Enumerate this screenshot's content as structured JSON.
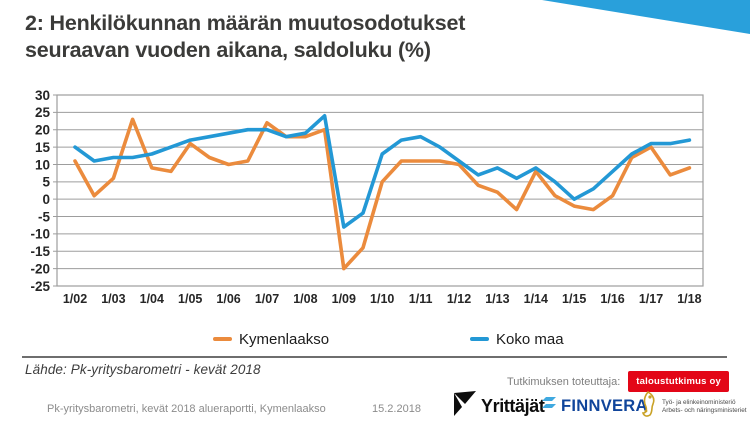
{
  "header": {
    "line1": "2: Henkilökunnan määrän muutosodotukset",
    "line2": "seuraavan vuoden aikana, saldoluku (%)"
  },
  "accent_color": "#29a0db",
  "chart_data": {
    "type": "line",
    "categories": [
      "1/02",
      "7/02",
      "1/03",
      "7/03",
      "1/04",
      "7/04",
      "1/05",
      "7/05",
      "1/06",
      "7/06",
      "1/07",
      "7/07",
      "1/08",
      "7/08",
      "1/09",
      "7/09",
      "1/10",
      "7/10",
      "1/11",
      "7/11",
      "1/12",
      "7/12",
      "1/13",
      "7/13",
      "1/14",
      "7/14",
      "1/15",
      "7/15",
      "1/16",
      "7/16",
      "1/17",
      "7/17",
      "1/18"
    ],
    "x_tick_labels": [
      "1/02",
      "1/03",
      "1/04",
      "1/05",
      "1/06",
      "1/07",
      "1/08",
      "1/09",
      "1/10",
      "1/11",
      "1/12",
      "1/13",
      "1/14",
      "1/15",
      "1/16",
      "1/17",
      "1/18"
    ],
    "x_tick_every": 2,
    "series": [
      {
        "name": "Kymenlaakso",
        "color": "#eb8b3d",
        "values": [
          11,
          1,
          6,
          23,
          9,
          8,
          16,
          12,
          10,
          11,
          22,
          18,
          18,
          20,
          -20,
          -14,
          5,
          11,
          11,
          11,
          10,
          4,
          2,
          -3,
          8,
          1,
          -2,
          -3,
          1,
          12,
          15,
          7,
          9
        ]
      },
      {
        "name": "Koko maa",
        "color": "#2398d5",
        "values": [
          15,
          11,
          12,
          12,
          13,
          15,
          17,
          18,
          19,
          20,
          20,
          18,
          19,
          24,
          -8,
          -4,
          13,
          17,
          18,
          15,
          11,
          7,
          9,
          6,
          9,
          5,
          0,
          3,
          8,
          13,
          16,
          16,
          17
        ]
      }
    ],
    "ylim": [
      -25,
      30
    ],
    "yticks": [
      30,
      25,
      20,
      15,
      10,
      5,
      0,
      -5,
      -10,
      -15,
      -20,
      -25
    ],
    "grid": "horizontal",
    "legend_position": "bottom",
    "title": "",
    "xlabel": "",
    "ylabel": ""
  },
  "source_note": "Lähde: Pk-yritysbarometri - kevät 2018",
  "researcher": {
    "label": "Tutkimuksen toteuttaja:",
    "badge": "taloustutkimus oy",
    "badge_color": "#e30617"
  },
  "footer": {
    "report": "Pk-yritysbarometri, kevät 2018 alueraportti, Kymenlaakso",
    "date": "15.2.2018",
    "logos": {
      "yrittajat": {
        "text": "Yrittäjät",
        "color": "#0d0d0d"
      },
      "finnvera": {
        "text": "FINNVERA",
        "color": "#10459b",
        "mark_color": "#3fa9e0"
      },
      "tem": {
        "line1": "Työ- ja elinkeinoministeriö",
        "line2": "Arbets- och näringsministeriet",
        "mark_color": "#c9a227"
      }
    }
  }
}
